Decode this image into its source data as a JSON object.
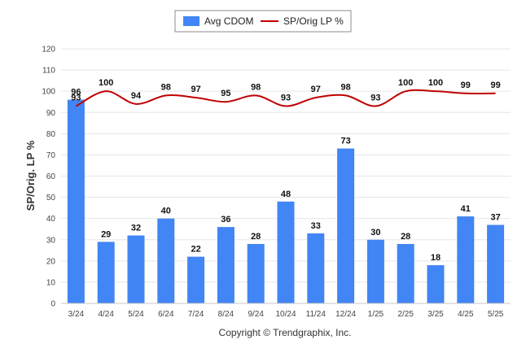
{
  "chart_data": {
    "type": "bar",
    "categories": [
      "3/24",
      "4/24",
      "5/24",
      "6/24",
      "7/24",
      "8/24",
      "9/24",
      "10/24",
      "11/24",
      "12/24",
      "1/25",
      "2/25",
      "3/25",
      "4/25",
      "5/25"
    ],
    "series": [
      {
        "name": "Avg CDOM",
        "type": "bar",
        "color": "#4285f4",
        "values": [
          96,
          29,
          32,
          40,
          22,
          36,
          28,
          48,
          33,
          73,
          30,
          28,
          18,
          41,
          37
        ]
      },
      {
        "name": "SP/Orig LP %",
        "type": "line",
        "color": "#c00000",
        "values": [
          93,
          100,
          94,
          98,
          97,
          95,
          98,
          93,
          97,
          98,
          93,
          100,
          100,
          99,
          99
        ]
      }
    ],
    "ylabel": "SP/Orig. LP %",
    "ylim": [
      0,
      120
    ],
    "yticks": [
      0,
      10,
      20,
      30,
      40,
      50,
      60,
      70,
      80,
      90,
      100,
      110,
      120
    ],
    "grid": true,
    "legend_position": "top-center"
  },
  "footer": {
    "copyright": "Copyright © Trendgraphix, Inc."
  }
}
